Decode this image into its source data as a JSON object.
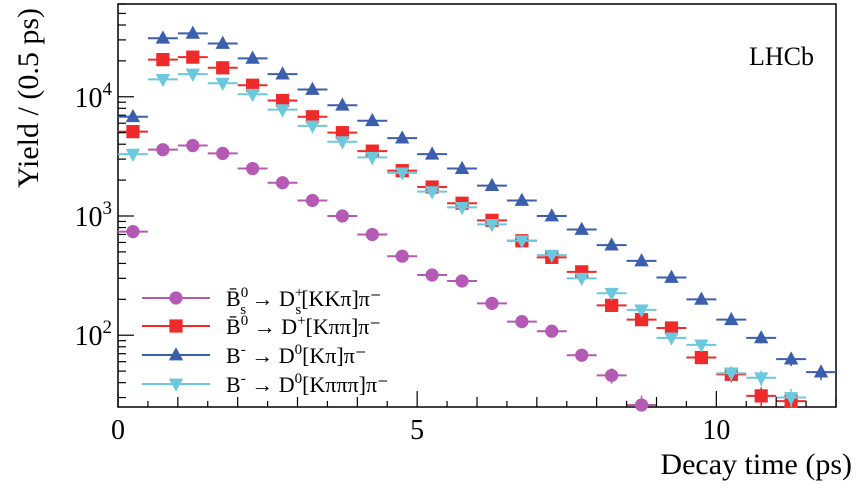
{
  "chart_data": {
    "type": "scatter",
    "xlabel": "Decay time (ps)",
    "ylabel": "Yield / (0.5 ps)",
    "xlim": [
      0,
      12
    ],
    "ylim": [
      25,
      60000
    ],
    "y_scale": "log",
    "x_ticks": [
      0,
      5,
      10
    ],
    "y_ticks": [
      {
        "value": 100,
        "base": "10",
        "exp": "2"
      },
      {
        "value": 1000,
        "base": "10",
        "exp": "3"
      },
      {
        "value": 10000,
        "base": "10",
        "exp": "4"
      }
    ],
    "annotation": "LHCb",
    "legend_position": "bottom-left",
    "bin_width": 0.5,
    "series": [
      {
        "label": {
          "main": "B̄",
          "sup": "0",
          "sub": "s",
          "rest": " → D",
          "sup2": "+",
          "sub2": "s",
          "rest2": "[KKπ]π⁻"
        },
        "color": "#b45ab4",
        "marker": "circle",
        "x": [
          0.25,
          0.75,
          1.25,
          1.75,
          2.25,
          2.75,
          3.25,
          3.75,
          4.25,
          4.75,
          5.25,
          5.75,
          6.25,
          6.75,
          7.25,
          7.75,
          8.25,
          8.75
        ],
        "y": [
          740,
          3600,
          3900,
          3350,
          2500,
          1900,
          1350,
          1000,
          700,
          460,
          320,
          285,
          185,
          130,
          108,
          68,
          46,
          26
        ]
      },
      {
        "label": {
          "main": "B̄",
          "sup": "0",
          "sub": "",
          "rest": " → D",
          "sup2": "+",
          "sub2": "",
          "rest2": "[Kππ]π⁻"
        },
        "color": "#ee2a2a",
        "marker": "square",
        "x": [
          0.25,
          0.75,
          1.25,
          1.75,
          2.25,
          2.75,
          3.25,
          3.75,
          4.25,
          4.75,
          5.25,
          5.75,
          6.25,
          6.75,
          7.25,
          7.75,
          8.25,
          8.75,
          9.25,
          9.75,
          10.25,
          10.75,
          11.25
        ],
        "y": [
          5100,
          20500,
          21500,
          17500,
          12500,
          9300,
          6800,
          5000,
          3500,
          2400,
          1750,
          1280,
          920,
          620,
          450,
          340,
          178,
          135,
          115,
          65,
          47,
          31,
          28
        ]
      },
      {
        "label": {
          "main": "B",
          "sup": "-",
          "sub": "",
          "rest": " → D",
          "sup2": "0",
          "sub2": "",
          "rest2": "[Kπ]π⁻"
        },
        "color": "#3b5fad",
        "marker": "triangle-up",
        "x": [
          0.25,
          0.75,
          1.25,
          1.75,
          2.25,
          2.75,
          3.25,
          3.75,
          4.25,
          4.75,
          5.25,
          5.75,
          6.25,
          6.75,
          7.25,
          7.75,
          8.25,
          8.75,
          9.25,
          9.75,
          10.25,
          10.75,
          11.25,
          11.75
        ],
        "y": [
          6800,
          31000,
          34000,
          28000,
          21000,
          15500,
          11500,
          8500,
          6300,
          4500,
          3300,
          2500,
          1800,
          1350,
          1000,
          770,
          570,
          420,
          305,
          200,
          135,
          95,
          63,
          49
        ]
      },
      {
        "label": {
          "main": "B",
          "sup": "-",
          "sub": "",
          "rest": " → D",
          "sup2": "0",
          "sub2": "",
          "rest2": "[Kπππ]π⁻"
        },
        "color": "#6cc8dc",
        "marker": "triangle-down",
        "x": [
          0.25,
          0.75,
          1.25,
          1.75,
          2.25,
          2.75,
          3.25,
          3.75,
          4.25,
          4.75,
          5.25,
          5.75,
          6.25,
          6.75,
          7.25,
          7.75,
          8.25,
          8.75,
          9.25,
          9.75,
          10.25,
          10.75,
          11.25
        ],
        "y": [
          3300,
          14000,
          15500,
          13000,
          10500,
          7800,
          5700,
          4200,
          3100,
          2300,
          1600,
          1180,
          850,
          620,
          470,
          300,
          225,
          163,
          95,
          83,
          48,
          44,
          30
        ]
      }
    ]
  }
}
